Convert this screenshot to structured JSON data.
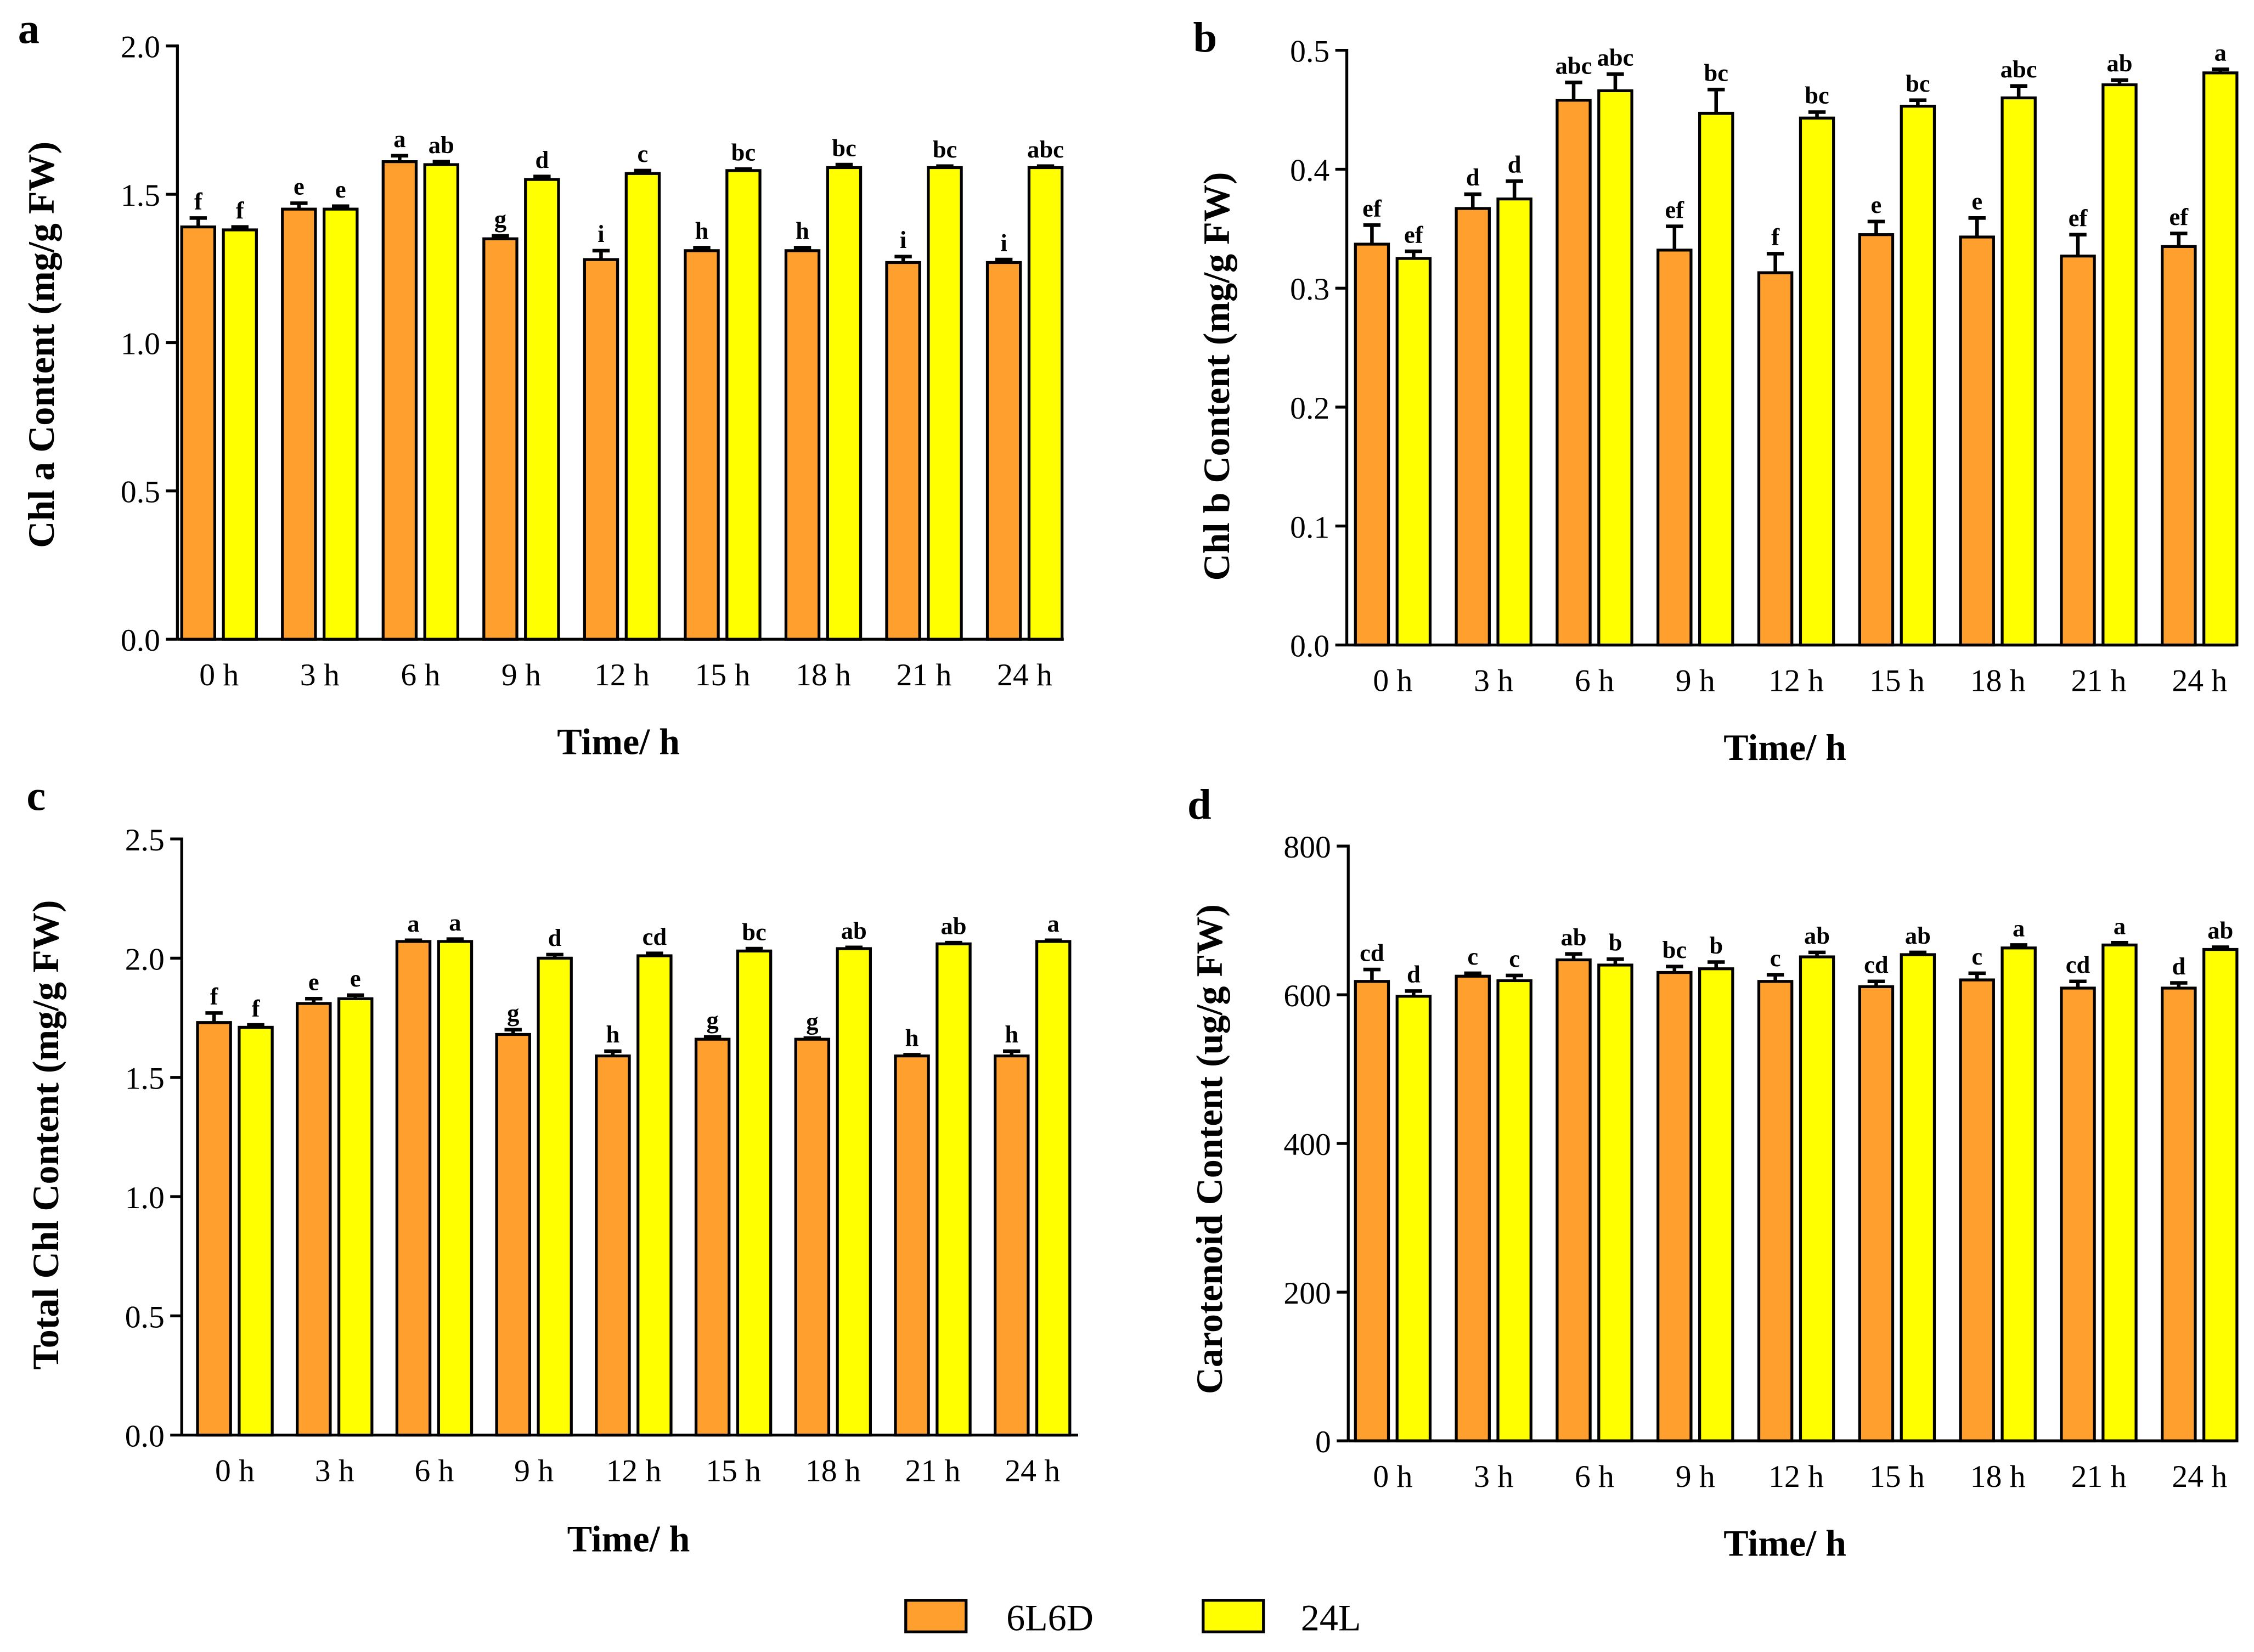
{
  "colors": {
    "6L6D": "#FF9F2E",
    "24L": "#FFFF00"
  },
  "legend": {
    "items": [
      {
        "label": "6L6D",
        "color": "#FF9F2E"
      },
      {
        "label": "24L",
        "color": "#FFFF00"
      }
    ]
  },
  "chart_data": [
    {
      "panel": "a",
      "type": "bar",
      "title": "",
      "xlabel": "Time/ h",
      "ylabel": "Chl a Content (mg/g FW)",
      "ylim": [
        0,
        2.0
      ],
      "yticks": [
        "0.0",
        "0.5",
        "1.0",
        "1.5",
        "2.0"
      ],
      "ytick_values": [
        0,
        0.5,
        1.0,
        1.5,
        2.0
      ],
      "categories": [
        "0 h",
        "3 h",
        "6 h",
        "9 h",
        "12 h",
        "15 h",
        "18 h",
        "21 h",
        "24 h"
      ],
      "series": [
        {
          "name": "6L6D",
          "values": [
            1.39,
            1.45,
            1.61,
            1.35,
            1.28,
            1.31,
            1.31,
            1.27,
            1.27
          ],
          "errors": [
            0.03,
            0.02,
            0.02,
            0.01,
            0.03,
            0.01,
            0.01,
            0.02,
            0.01
          ],
          "letters": [
            "f",
            "e",
            "a",
            "g",
            "i",
            "h",
            "h",
            "i",
            "i"
          ]
        },
        {
          "name": "24L",
          "values": [
            1.38,
            1.45,
            1.6,
            1.55,
            1.57,
            1.58,
            1.59,
            1.59,
            1.59
          ],
          "errors": [
            0.01,
            0.01,
            0.01,
            0.01,
            0.01,
            0.005,
            0.01,
            0.005,
            0.005
          ],
          "letters": [
            "f",
            "e",
            "ab",
            "d",
            "c",
            "bc",
            "bc",
            "bc",
            "abc"
          ]
        }
      ]
    },
    {
      "panel": "b",
      "type": "bar",
      "title": "",
      "xlabel": "Time/ h",
      "ylabel": "Chl b Content (mg/g FW)",
      "ylim": [
        0,
        0.5
      ],
      "yticks": [
        "0.0",
        "0.1",
        "0.2",
        "0.3",
        "0.4",
        "0.5"
      ],
      "ytick_values": [
        0,
        0.1,
        0.2,
        0.3,
        0.4,
        0.5
      ],
      "categories": [
        "0 h",
        "3 h",
        "6 h",
        "9 h",
        "12 h",
        "15 h",
        "18 h",
        "21 h",
        "24 h"
      ],
      "series": [
        {
          "name": "6L6D",
          "values": [
            0.337,
            0.367,
            0.458,
            0.332,
            0.313,
            0.345,
            0.343,
            0.327,
            0.335
          ],
          "errors": [
            0.016,
            0.012,
            0.015,
            0.02,
            0.016,
            0.011,
            0.016,
            0.018,
            0.011
          ],
          "letters": [
            "ef",
            "d",
            "abc",
            "ef",
            "f",
            "e",
            "e",
            "ef",
            "ef"
          ]
        },
        {
          "name": "24L",
          "values": [
            0.325,
            0.375,
            0.466,
            0.447,
            0.443,
            0.453,
            0.46,
            0.471,
            0.481
          ],
          "errors": [
            0.006,
            0.015,
            0.014,
            0.02,
            0.005,
            0.005,
            0.01,
            0.004,
            0.003
          ],
          "letters": [
            "ef",
            "d",
            "abc",
            "bc",
            "bc",
            "bc",
            "abc",
            "ab",
            "a"
          ]
        }
      ]
    },
    {
      "panel": "c",
      "type": "bar",
      "title": "",
      "xlabel": "Time/ h",
      "ylabel": "Total Chl Content (mg/g FW)",
      "ylim": [
        0,
        2.5
      ],
      "yticks": [
        "0.0",
        "0.5",
        "1.0",
        "1.5",
        "2.0",
        "2.5"
      ],
      "ytick_values": [
        0,
        0.5,
        1.0,
        1.5,
        2.0,
        2.5
      ],
      "categories": [
        "0 h",
        "3 h",
        "6 h",
        "9 h",
        "12 h",
        "15 h",
        "18 h",
        "21 h",
        "24 h"
      ],
      "series": [
        {
          "name": "6L6D",
          "values": [
            1.73,
            1.81,
            2.07,
            1.68,
            1.59,
            1.66,
            1.66,
            1.59,
            1.59
          ],
          "errors": [
            0.04,
            0.02,
            0.005,
            0.02,
            0.02,
            0.01,
            0.005,
            0.005,
            0.02
          ],
          "letters": [
            "f",
            "e",
            "a",
            "g",
            "h",
            "g",
            "g",
            "h",
            "h"
          ]
        },
        {
          "name": "24L",
          "values": [
            1.71,
            1.83,
            2.07,
            2.0,
            2.01,
            2.03,
            2.04,
            2.06,
            2.07
          ],
          "errors": [
            0.01,
            0.015,
            0.01,
            0.015,
            0.01,
            0.01,
            0.005,
            0.005,
            0.005
          ],
          "letters": [
            "f",
            "e",
            "a",
            "d",
            "cd",
            "bc",
            "ab",
            "ab",
            "a"
          ]
        }
      ]
    },
    {
      "panel": "d",
      "type": "bar",
      "title": "",
      "xlabel": "Time/ h",
      "ylabel": "Carotenoid Content (ug/g FW)",
      "ylim": [
        0,
        800
      ],
      "yticks": [
        "0",
        "200",
        "400",
        "600",
        "800"
      ],
      "ytick_values": [
        0,
        200,
        400,
        600,
        800
      ],
      "categories": [
        "0 h",
        "3 h",
        "6 h",
        "9 h",
        "12 h",
        "15 h",
        "18 h",
        "21 h",
        "24 h"
      ],
      "series": [
        {
          "name": "6L6D",
          "values": [
            618,
            625,
            647,
            630,
            618,
            611,
            620,
            609,
            609
          ],
          "errors": [
            16,
            4,
            8,
            8,
            9,
            7,
            9,
            9,
            7
          ],
          "letters": [
            "cd",
            "c",
            "ab",
            "bc",
            "c",
            "cd",
            "c",
            "cd",
            "d"
          ]
        },
        {
          "name": "24L",
          "values": [
            598,
            619,
            640,
            635,
            651,
            654,
            663,
            667,
            661
          ],
          "errors": [
            7,
            7,
            8,
            9,
            6,
            3,
            4,
            3,
            3
          ],
          "letters": [
            "d",
            "c",
            "b",
            "b",
            "ab",
            "ab",
            "a",
            "a",
            "ab"
          ]
        }
      ]
    }
  ]
}
